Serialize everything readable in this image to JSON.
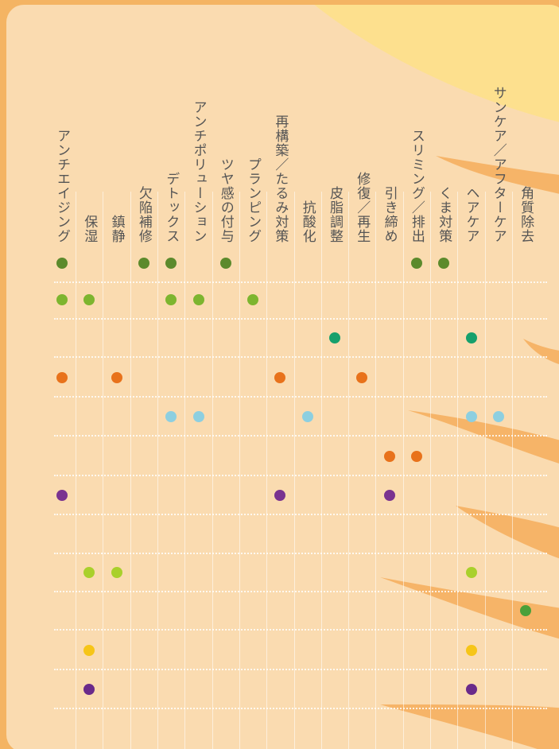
{
  "table": {
    "columns": [
      "アンチエイジング",
      "保湿",
      "鎮静",
      "欠陥補修",
      "デトックス",
      "アンチポリューション",
      "ツヤ感の付与",
      "プランピング",
      "再構築／たるみ対策",
      "抗酸化",
      "皮脂調整",
      "修復／再生",
      "引き締め",
      "スリミング／排出",
      "くま対策",
      "ヘアケア",
      "サンケア／アフターケア",
      "角質除去"
    ],
    "rows": [
      {
        "color": "#5c8a2c",
        "cells": [
          true,
          false,
          false,
          true,
          true,
          false,
          true,
          false,
          false,
          false,
          false,
          false,
          false,
          true,
          true,
          false,
          false,
          false
        ]
      },
      {
        "color": "#7db52f",
        "cells": [
          true,
          true,
          false,
          false,
          true,
          true,
          false,
          true,
          false,
          false,
          false,
          false,
          false,
          false,
          false,
          false,
          false,
          false
        ]
      },
      {
        "color": "#16a06c",
        "cells": [
          false,
          false,
          false,
          false,
          false,
          false,
          false,
          false,
          false,
          false,
          true,
          false,
          false,
          false,
          false,
          true,
          false,
          false
        ]
      },
      {
        "color": "#e8721b",
        "cells": [
          true,
          false,
          true,
          false,
          false,
          false,
          false,
          false,
          true,
          false,
          false,
          true,
          false,
          false,
          false,
          false,
          false,
          false
        ]
      },
      {
        "color": "#8dcfe0",
        "cells": [
          false,
          false,
          false,
          false,
          true,
          true,
          false,
          false,
          false,
          true,
          false,
          false,
          false,
          false,
          false,
          true,
          true,
          false
        ]
      },
      {
        "color": "#e8721b",
        "cells": [
          false,
          false,
          false,
          false,
          false,
          false,
          false,
          false,
          false,
          false,
          false,
          false,
          true,
          true,
          false,
          false,
          false,
          false
        ]
      },
      {
        "color": "#7a3390",
        "cells": [
          true,
          false,
          false,
          false,
          false,
          false,
          false,
          false,
          true,
          false,
          false,
          false,
          true,
          false,
          false,
          false,
          false,
          false
        ]
      },
      {
        "color": "#ffffff",
        "cells": [
          false,
          false,
          false,
          false,
          false,
          false,
          false,
          false,
          false,
          false,
          false,
          false,
          false,
          false,
          false,
          false,
          false,
          false
        ]
      },
      {
        "color": "#a9d02c",
        "cells": [
          false,
          true,
          true,
          false,
          false,
          false,
          false,
          false,
          false,
          false,
          false,
          false,
          false,
          false,
          false,
          true,
          false,
          false
        ]
      },
      {
        "color": "#4aa03a",
        "cells": [
          false,
          false,
          false,
          false,
          false,
          false,
          false,
          false,
          false,
          false,
          false,
          false,
          false,
          false,
          false,
          false,
          false,
          true
        ]
      },
      {
        "color": "#f6c518",
        "cells": [
          false,
          true,
          false,
          false,
          false,
          false,
          false,
          false,
          false,
          false,
          false,
          false,
          false,
          false,
          false,
          true,
          false,
          false
        ]
      },
      {
        "color": "#6a2a8a",
        "cells": [
          false,
          true,
          false,
          false,
          false,
          false,
          false,
          false,
          false,
          false,
          false,
          false,
          false,
          false,
          false,
          true,
          false,
          false
        ]
      }
    ]
  }
}
